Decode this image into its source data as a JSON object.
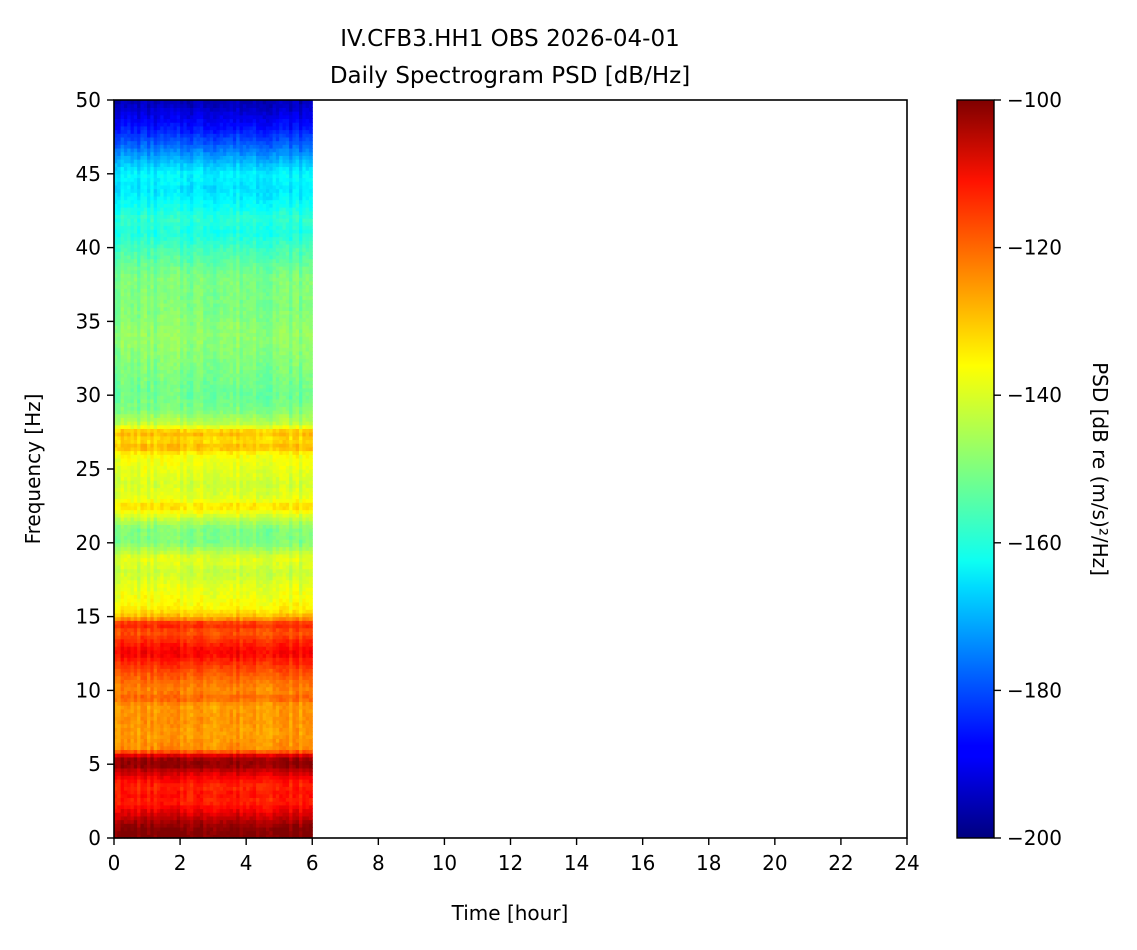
{
  "chart_data": {
    "type": "heatmap",
    "title": "IV.CFB3.HH1 OBS 2026-04-01",
    "subtitle": "Daily Spectrogram PSD [dB/Hz]",
    "xlabel": "Time [hour]",
    "ylabel": "Frequency [Hz]",
    "xlim": [
      0,
      24
    ],
    "ylim": [
      0,
      50
    ],
    "xticks": [
      0,
      2,
      4,
      6,
      8,
      10,
      12,
      14,
      16,
      18,
      20,
      22,
      24
    ],
    "yticks": [
      0,
      5,
      10,
      15,
      20,
      25,
      30,
      35,
      40,
      45,
      50
    ],
    "data_time_range_hours": [
      0,
      6
    ],
    "colormap": "jet",
    "colorbar": {
      "label": "PSD [dB re (m/s)²/Hz]",
      "min": -200,
      "max": -100,
      "ticks": [
        -100,
        -120,
        -140,
        -160,
        -180,
        -200
      ]
    },
    "frequency_profile": {
      "frequencies_hz": [
        0,
        0.5,
        1,
        1.5,
        2,
        2.5,
        3,
        3.5,
        4,
        4.5,
        5,
        5.5,
        6,
        7,
        8,
        9,
        9.5,
        10,
        11,
        12,
        12.5,
        13,
        14,
        14.5,
        15,
        15.5,
        16,
        17,
        18,
        19,
        20,
        21,
        22,
        22.5,
        23,
        24,
        25,
        26,
        26.5,
        27,
        27.5,
        28,
        29,
        30,
        32,
        34,
        36,
        38,
        40,
        41,
        42,
        43,
        44,
        45,
        46,
        47,
        48,
        49,
        50
      ],
      "psd_db": [
        -100,
        -100,
        -103,
        -108,
        -112,
        -116,
        -114,
        -116,
        -113,
        -108,
        -101,
        -104,
        -126,
        -128,
        -127,
        -128,
        -122,
        -126,
        -122,
        -116,
        -112,
        -114,
        -121,
        -115,
        -130,
        -136,
        -138,
        -140,
        -143,
        -140,
        -150,
        -150,
        -140,
        -134,
        -140,
        -142,
        -140,
        -138,
        -130,
        -135,
        -130,
        -143,
        -150,
        -152,
        -150,
        -148,
        -150,
        -150,
        -156,
        -160,
        -158,
        -162,
        -165,
        -163,
        -170,
        -178,
        -185,
        -190,
        -195
      ]
    }
  }
}
